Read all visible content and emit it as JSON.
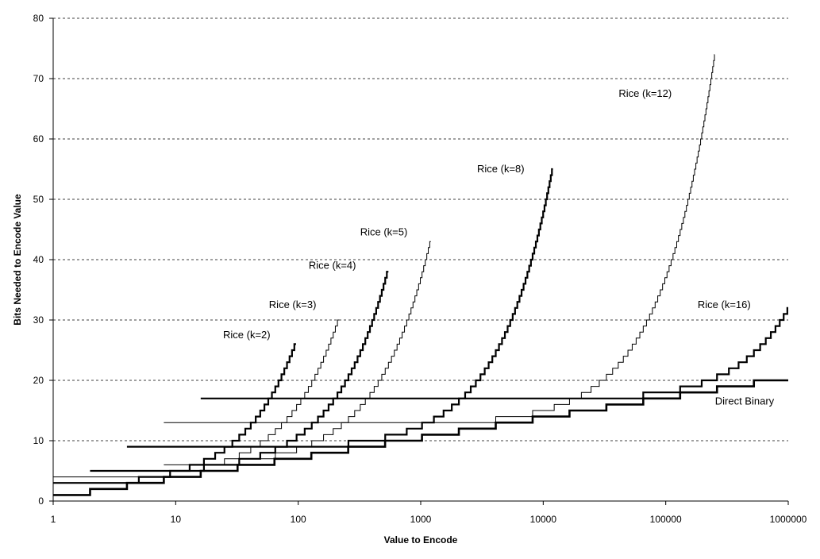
{
  "chart_data": {
    "type": "line",
    "xlabel": "Value to Encode",
    "ylabel": "Bits Needed to Encode Value",
    "xscale": "log",
    "xlim": [
      1,
      1000000
    ],
    "ylim": [
      0,
      80
    ],
    "x_ticks": [
      "1",
      "10",
      "100",
      "1000",
      "10000",
      "100000",
      "1000000"
    ],
    "y_ticks": [
      "0",
      "10",
      "20",
      "30",
      "40",
      "50",
      "60",
      "70",
      "80"
    ],
    "grid": "horizontal dashed",
    "series": [
      {
        "name": "Rice (k=2)",
        "k": 2,
        "label_at": [
          38,
          27
        ],
        "x_range": [
          1,
          96
        ]
      },
      {
        "name": "Rice (k=3)",
        "k": 3,
        "label_at": [
          90,
          32
        ],
        "x_range": [
          1,
          216
        ]
      },
      {
        "name": "Rice (k=4)",
        "k": 4,
        "label_at": [
          190,
          38.5
        ],
        "x_range": [
          2,
          545
        ]
      },
      {
        "name": "Rice (k=5)",
        "k": 5,
        "label_at": [
          500,
          44
        ],
        "x_range": [
          8,
          1210
        ]
      },
      {
        "name": "Rice (k=8)",
        "k": 8,
        "label_at": [
          4500,
          54.5
        ],
        "x_range": [
          4,
          12000
        ]
      },
      {
        "name": "Rice (k=12)",
        "k": 12,
        "label_at": [
          68000,
          67
        ],
        "x_range": [
          8,
          250000
        ]
      },
      {
        "name": "Rice (k=16)",
        "k": 16,
        "label_at": [
          300000,
          32
        ],
        "x_range": [
          16,
          1000000
        ]
      },
      {
        "name": "Direct Binary",
        "k": 0,
        "label_at": [
          440000,
          16
        ],
        "x_range": [
          1,
          1000000
        ]
      }
    ]
  }
}
